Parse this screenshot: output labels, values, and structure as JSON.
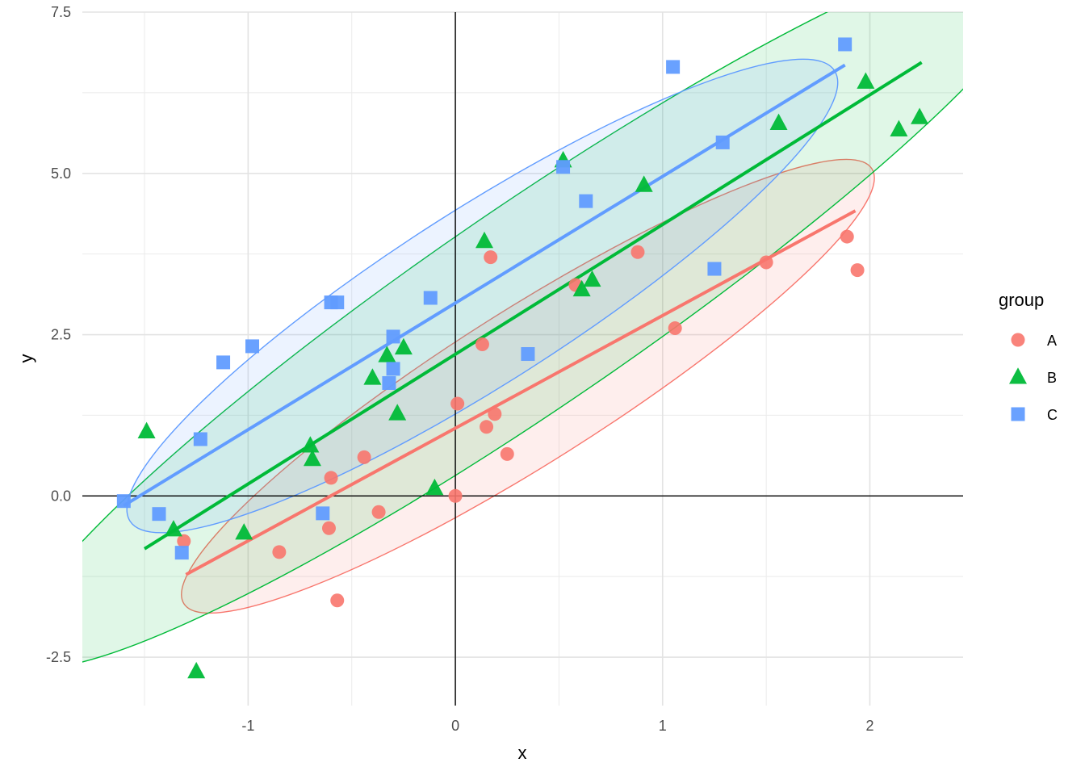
{
  "chart_data": {
    "type": "scatter",
    "xlabel": "x",
    "ylabel": "y",
    "xlim": [
      -1.8,
      2.45
    ],
    "ylim": [
      -3.25,
      7.5
    ],
    "x_ticks": [
      -1,
      0,
      1,
      2
    ],
    "x_tick_labels": [
      "-1",
      "0",
      "1",
      "2"
    ],
    "y_ticks": [
      -2.5,
      0,
      2.5,
      5,
      7.5
    ],
    "y_tick_labels": [
      "-2.5",
      "0.0",
      "2.5",
      "5.0",
      "7.5"
    ],
    "grid": true,
    "reference_lines": {
      "x": 0,
      "y": 0
    },
    "legend": {
      "title": "group",
      "position": "right"
    },
    "series": [
      {
        "name": "A",
        "color": "#F8766D",
        "shape": "circle",
        "points": [
          [
            0.01,
            1.43
          ],
          [
            0.17,
            3.7
          ],
          [
            0.13,
            2.35
          ],
          [
            0.15,
            1.07
          ],
          [
            0.19,
            1.27
          ],
          [
            0.25,
            0.65
          ],
          [
            0.0,
            0.0
          ],
          [
            -0.6,
            0.28
          ],
          [
            -0.44,
            0.6
          ],
          [
            -0.37,
            -0.25
          ],
          [
            -0.61,
            -0.5
          ],
          [
            -0.85,
            -0.87
          ],
          [
            -1.31,
            -0.7
          ],
          [
            -0.57,
            -1.62
          ],
          [
            0.58,
            3.27
          ],
          [
            0.88,
            3.78
          ],
          [
            1.06,
            2.6
          ],
          [
            1.5,
            3.62
          ],
          [
            1.89,
            4.02
          ],
          [
            1.94,
            3.5
          ]
        ],
        "fit_line": {
          "x": [
            -1.3,
            1.93
          ],
          "y": [
            -1.22,
            4.42
          ]
        },
        "ellipse": {
          "center": [
            0.35,
            1.7
          ],
          "major_endpoints": [
            [
              -1.31,
              -1.67
            ],
            [
              2.01,
              5.07
            ]
          ],
          "semi_minor": 0.62
        }
      },
      {
        "name": "B",
        "color": "#00BA38",
        "shape": "triangle",
        "points": [
          [
            -1.49,
            1.0
          ],
          [
            -1.36,
            -0.52
          ],
          [
            -1.25,
            -2.72
          ],
          [
            -1.02,
            -0.57
          ],
          [
            -0.7,
            0.78
          ],
          [
            -0.69,
            0.57
          ],
          [
            -0.4,
            1.83
          ],
          [
            -0.33,
            2.18
          ],
          [
            -0.28,
            1.28
          ],
          [
            -0.25,
            2.3
          ],
          [
            -0.1,
            0.12
          ],
          [
            0.14,
            3.95
          ],
          [
            0.52,
            5.2
          ],
          [
            0.61,
            3.2
          ],
          [
            0.66,
            3.35
          ],
          [
            0.91,
            4.82
          ],
          [
            1.56,
            5.78
          ],
          [
            1.98,
            6.42
          ],
          [
            2.14,
            5.68
          ],
          [
            2.24,
            5.87
          ]
        ],
        "fit_line": {
          "x": [
            -1.5,
            2.25
          ],
          "y": [
            -0.82,
            6.72
          ]
        },
        "ellipse": {
          "center": [
            0.37,
            2.95
          ],
          "major_endpoints": [
            [
              -2.12,
              -2.52
            ],
            [
              2.86,
              8.42
            ]
          ],
          "semi_minor": 0.78
        }
      },
      {
        "name": "C",
        "color": "#619CFF",
        "shape": "square",
        "points": [
          [
            -1.6,
            -0.08
          ],
          [
            -1.43,
            -0.28
          ],
          [
            -1.32,
            -0.88
          ],
          [
            -1.23,
            0.88
          ],
          [
            -1.12,
            2.07
          ],
          [
            -0.98,
            2.32
          ],
          [
            -0.6,
            3.0
          ],
          [
            -0.57,
            3.0
          ],
          [
            -0.64,
            -0.27
          ],
          [
            -0.12,
            3.07
          ],
          [
            -0.3,
            2.47
          ],
          [
            -0.3,
            1.97
          ],
          [
            -0.32,
            1.75
          ],
          [
            0.35,
            2.2
          ],
          [
            0.52,
            5.1
          ],
          [
            0.63,
            4.57
          ],
          [
            1.05,
            6.65
          ],
          [
            1.25,
            3.52
          ],
          [
            1.29,
            5.48
          ],
          [
            1.88,
            7.0
          ]
        ],
        "fit_line": {
          "x": [
            -1.6,
            1.88
          ],
          "y": [
            -0.15,
            6.68
          ]
        },
        "ellipse": {
          "center": [
            0.13,
            3.1
          ],
          "major_endpoints": [
            [
              -1.57,
              -0.39
            ],
            [
              1.83,
              6.59
            ]
          ],
          "semi_minor": 0.7
        }
      }
    ]
  }
}
